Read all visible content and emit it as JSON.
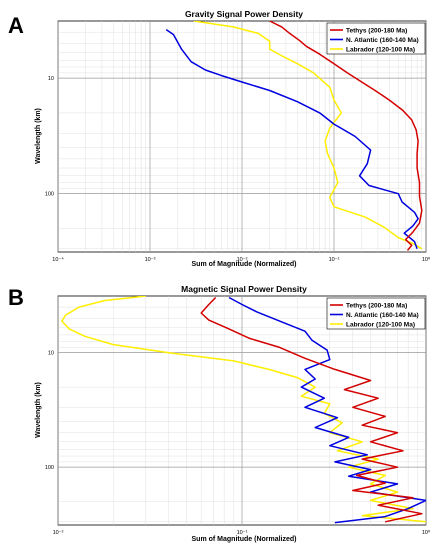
{
  "figure": {
    "panel_a_label": "A",
    "panel_b_label": "B"
  },
  "colors": {
    "tethys": "#d40000",
    "natlantic": "#0000e0",
    "labrador": "#ffee00",
    "grid": "#d8d8d8",
    "gridMajor": "#9a9a9a"
  },
  "chart_data": [
    {
      "type": "line",
      "title": "Gravity Signal Power Density",
      "xlabel": "Sum of Magnitude (Normalized)",
      "ylabel": "Wavelength (km)",
      "xscale": "log",
      "yscale": "log",
      "xlim": [
        0.0001,
        1
      ],
      "ylim": [
        3.2,
        320
      ],
      "y_reversed": true,
      "x_tick_labels": [
        "10⁻⁴",
        "10⁻³",
        "10⁻²",
        "10⁻¹",
        "10⁰"
      ],
      "x_ticks": [
        0.0001,
        0.001,
        0.01,
        0.1,
        1
      ],
      "y_tick_labels": [
        "10",
        "100"
      ],
      "y_ticks": [
        10,
        100
      ],
      "grid": true,
      "legend_position": "top-right",
      "series": [
        {
          "name": "Tethys (200-180 Ma)",
          "color_key": "tethys",
          "points": [
            [
              0.02,
              3.2
            ],
            [
              0.027,
              3.6
            ],
            [
              0.033,
              4.1
            ],
            [
              0.042,
              4.7
            ],
            [
              0.05,
              5.3
            ],
            [
              0.07,
              6.2
            ],
            [
              0.1,
              7.5
            ],
            [
              0.14,
              9.0
            ],
            [
              0.2,
              10.8
            ],
            [
              0.28,
              12.8
            ],
            [
              0.4,
              15.5
            ],
            [
              0.56,
              19
            ],
            [
              0.7,
              23
            ],
            [
              0.78,
              28
            ],
            [
              0.82,
              35
            ],
            [
              0.8,
              45
            ],
            [
              0.8,
              60
            ],
            [
              0.85,
              80
            ],
            [
              0.85,
              105
            ],
            [
              0.9,
              140
            ],
            [
              0.85,
              180
            ],
            [
              0.72,
              215
            ],
            [
              0.6,
              250
            ],
            [
              0.7,
              280
            ],
            [
              0.63,
              310
            ]
          ]
        },
        {
          "name": "N. Atlantic (160-140 Ma)",
          "color_key": "natlantic",
          "points": [
            [
              0.0015,
              3.8
            ],
            [
              0.0018,
              4.2
            ],
            [
              0.0022,
              5.6
            ],
            [
              0.0028,
              7.2
            ],
            [
              0.004,
              8.5
            ],
            [
              0.006,
              9.5
            ],
            [
              0.01,
              10.8
            ],
            [
              0.02,
              12.8
            ],
            [
              0.04,
              16
            ],
            [
              0.07,
              20
            ],
            [
              0.1,
              25
            ],
            [
              0.17,
              32
            ],
            [
              0.25,
              42
            ],
            [
              0.23,
              55
            ],
            [
              0.19,
              70
            ],
            [
              0.24,
              85
            ],
            [
              0.5,
              100
            ],
            [
              0.55,
              118
            ],
            [
              0.65,
              132
            ],
            [
              0.75,
              145
            ],
            [
              0.82,
              165
            ],
            [
              0.72,
              190
            ],
            [
              0.58,
              220
            ],
            [
              0.75,
              260
            ],
            [
              0.8,
              300
            ]
          ]
        },
        {
          "name": "Labrador (120-100 Ma)",
          "color_key": "labrador",
          "points": [
            [
              0.003,
              3.2
            ],
            [
              0.008,
              3.6
            ],
            [
              0.015,
              4.1
            ],
            [
              0.02,
              4.8
            ],
            [
              0.02,
              5.6
            ],
            [
              0.028,
              6.5
            ],
            [
              0.04,
              7.5
            ],
            [
              0.06,
              9.0
            ],
            [
              0.09,
              12
            ],
            [
              0.1,
              15.5
            ],
            [
              0.12,
              20
            ],
            [
              0.09,
              27
            ],
            [
              0.08,
              35
            ],
            [
              0.085,
              45
            ],
            [
              0.1,
              60
            ],
            [
              0.11,
              80
            ],
            [
              0.09,
              108
            ],
            [
              0.1,
              130
            ],
            [
              0.22,
              160
            ],
            [
              0.35,
              195
            ],
            [
              0.5,
              240
            ],
            [
              0.72,
              270
            ],
            [
              0.9,
              300
            ]
          ]
        }
      ]
    },
    {
      "type": "line",
      "title": "Magnetic Signal Power Density",
      "xlabel": "Sum of Magnitude (Normalized)",
      "ylabel": "Wavelength (km)",
      "xscale": "log",
      "yscale": "log",
      "xlim": [
        0.01,
        1
      ],
      "ylim": [
        3.2,
        320
      ],
      "y_reversed": true,
      "x_tick_labels": [
        "10⁻²",
        "10⁻¹",
        "10⁰"
      ],
      "x_ticks": [
        0.01,
        0.1,
        1
      ],
      "y_tick_labels": [
        "10",
        "100"
      ],
      "y_ticks": [
        10,
        100
      ],
      "grid": true,
      "legend_position": "top-right",
      "series": [
        {
          "name": "Tethys (200-180 Ma)",
          "color_key": "tethys",
          "points": [
            [
              0.072,
              3.3
            ],
            [
              0.066,
              3.8
            ],
            [
              0.06,
              4.5
            ],
            [
              0.066,
              5.2
            ],
            [
              0.085,
              6.2
            ],
            [
              0.11,
              7.5
            ],
            [
              0.16,
              9.0
            ],
            [
              0.22,
              11.2
            ],
            [
              0.32,
              14.0
            ],
            [
              0.5,
              17.5
            ],
            [
              0.36,
              21
            ],
            [
              0.55,
              25
            ],
            [
              0.4,
              30
            ],
            [
              0.6,
              36
            ],
            [
              0.45,
              43
            ],
            [
              0.7,
              50
            ],
            [
              0.5,
              60
            ],
            [
              0.75,
              72
            ],
            [
              0.45,
              85
            ],
            [
              0.7,
              100
            ],
            [
              0.42,
              118
            ],
            [
              0.6,
              138
            ],
            [
              0.4,
              160
            ],
            [
              0.85,
              185
            ],
            [
              0.55,
              215
            ],
            [
              0.95,
              255
            ],
            [
              0.6,
              300
            ]
          ]
        },
        {
          "name": "N. Atlantic (160-140 Ma)",
          "color_key": "natlantic",
          "points": [
            [
              0.085,
              3.3
            ],
            [
              0.1,
              3.8
            ],
            [
              0.12,
              4.4
            ],
            [
              0.16,
              5.3
            ],
            [
              0.22,
              6.5
            ],
            [
              0.24,
              7.8
            ],
            [
              0.29,
              9.5
            ],
            [
              0.3,
              11.5
            ],
            [
              0.22,
              14
            ],
            [
              0.25,
              17
            ],
            [
              0.21,
              20
            ],
            [
              0.28,
              25
            ],
            [
              0.22,
              30
            ],
            [
              0.33,
              37
            ],
            [
              0.25,
              45
            ],
            [
              0.38,
              55
            ],
            [
              0.3,
              65
            ],
            [
              0.48,
              78
            ],
            [
              0.32,
              90
            ],
            [
              0.5,
              105
            ],
            [
              0.38,
              120
            ],
            [
              0.7,
              140
            ],
            [
              0.5,
              165
            ],
            [
              1.0,
              195
            ],
            [
              0.8,
              230
            ],
            [
              0.6,
              270
            ],
            [
              0.32,
              305
            ]
          ]
        },
        {
          "name": "Labrador (120-100 Ma)",
          "color_key": "labrador",
          "points": [
            [
              0.03,
              3.2
            ],
            [
              0.018,
              3.5
            ],
            [
              0.013,
              4.0
            ],
            [
              0.011,
              4.7
            ],
            [
              0.0105,
              5.3
            ],
            [
              0.0115,
              6.2
            ],
            [
              0.014,
              7.2
            ],
            [
              0.02,
              8.5
            ],
            [
              0.04,
              10.0
            ],
            [
              0.09,
              11.8
            ],
            [
              0.14,
              14
            ],
            [
              0.2,
              16.5
            ],
            [
              0.25,
              20
            ],
            [
              0.21,
              24
            ],
            [
              0.3,
              28
            ],
            [
              0.28,
              34
            ],
            [
              0.35,
              41
            ],
            [
              0.3,
              50
            ],
            [
              0.45,
              60
            ],
            [
              0.33,
              72
            ],
            [
              0.55,
              85
            ],
            [
              0.38,
              100
            ],
            [
              0.6,
              118
            ],
            [
              0.5,
              140
            ],
            [
              0.7,
              165
            ],
            [
              0.5,
              195
            ],
            [
              0.85,
              230
            ],
            [
              0.45,
              265
            ],
            [
              1.0,
              300
            ]
          ]
        }
      ]
    }
  ]
}
